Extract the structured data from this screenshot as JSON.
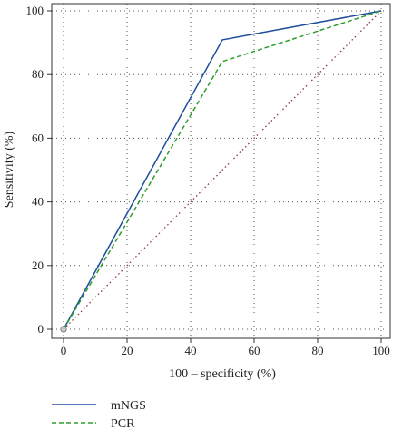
{
  "chart_data": {
    "type": "line",
    "xlabel": "100 – specificity (%)",
    "ylabel": "Sensitivity (%)",
    "xlim": [
      0,
      100
    ],
    "ylim": [
      0,
      100
    ],
    "x_ticks": [
      0,
      20,
      40,
      60,
      80,
      100
    ],
    "y_ticks": [
      0,
      20,
      40,
      60,
      80,
      100
    ],
    "grid": true,
    "legend_position": "bottom-left",
    "series": [
      {
        "name": "mNGS",
        "x": [
          0,
          50,
          100
        ],
        "y": [
          0,
          90.9,
          100
        ],
        "color": "#1f4e9c",
        "dash": "solid"
      },
      {
        "name": "PCR",
        "x": [
          0,
          50,
          100
        ],
        "y": [
          0,
          84.1,
          100
        ],
        "color": "#2e9d2e",
        "dash": "dashed"
      }
    ],
    "reference_line": {
      "x": [
        0,
        100
      ],
      "y": [
        0,
        100
      ],
      "color": "#8b3a3a",
      "dash": "dotted"
    }
  }
}
